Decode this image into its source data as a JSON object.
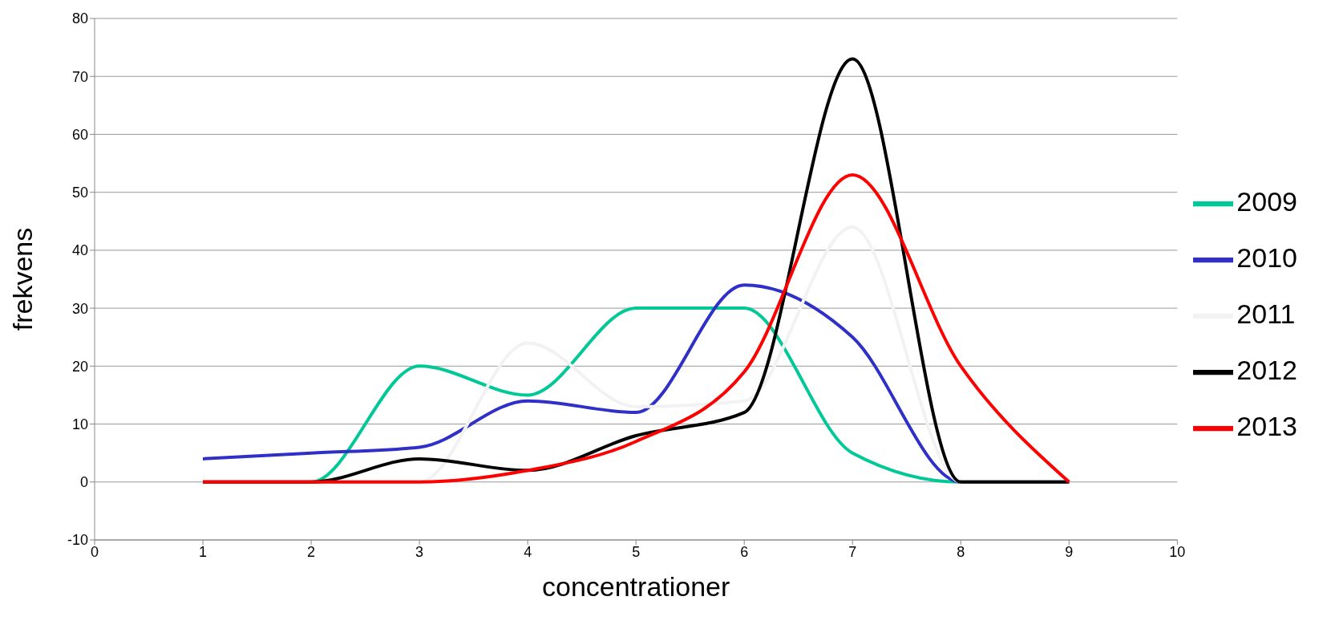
{
  "chart_data": {
    "type": "line",
    "xlabel": "concentrationer",
    "ylabel": "frekvens",
    "x": [
      1,
      2,
      3,
      4,
      5,
      6,
      7,
      8,
      9
    ],
    "series": [
      {
        "name": "2009",
        "color": "#00c896",
        "values": [
          0,
          0,
          20,
          15,
          30,
          30,
          5,
          0,
          0
        ]
      },
      {
        "name": "2010",
        "color": "#3030c8",
        "values": [
          4,
          5,
          6,
          14,
          12,
          34,
          25,
          0,
          0
        ]
      },
      {
        "name": "2011",
        "color": "#f2f2f2",
        "values": [
          0,
          0,
          0,
          24,
          13,
          14,
          44,
          0,
          0
        ]
      },
      {
        "name": "2012",
        "color": "#000000",
        "values": [
          0,
          0,
          4,
          2,
          8,
          12,
          73,
          0,
          0
        ]
      },
      {
        "name": "2013",
        "color": "#ff0000",
        "values": [
          0,
          0,
          0,
          2,
          7,
          19,
          53,
          20,
          0
        ]
      }
    ],
    "xlim": [
      0,
      10
    ],
    "xticks": [
      0,
      1,
      2,
      3,
      4,
      5,
      6,
      7,
      8,
      9,
      10
    ],
    "ylim": [
      -10,
      80
    ],
    "yticks": [
      -10,
      0,
      10,
      20,
      30,
      40,
      50,
      60,
      70,
      80
    ],
    "grid": "y",
    "legend": "right",
    "marker": "none",
    "line_style": "solid"
  }
}
